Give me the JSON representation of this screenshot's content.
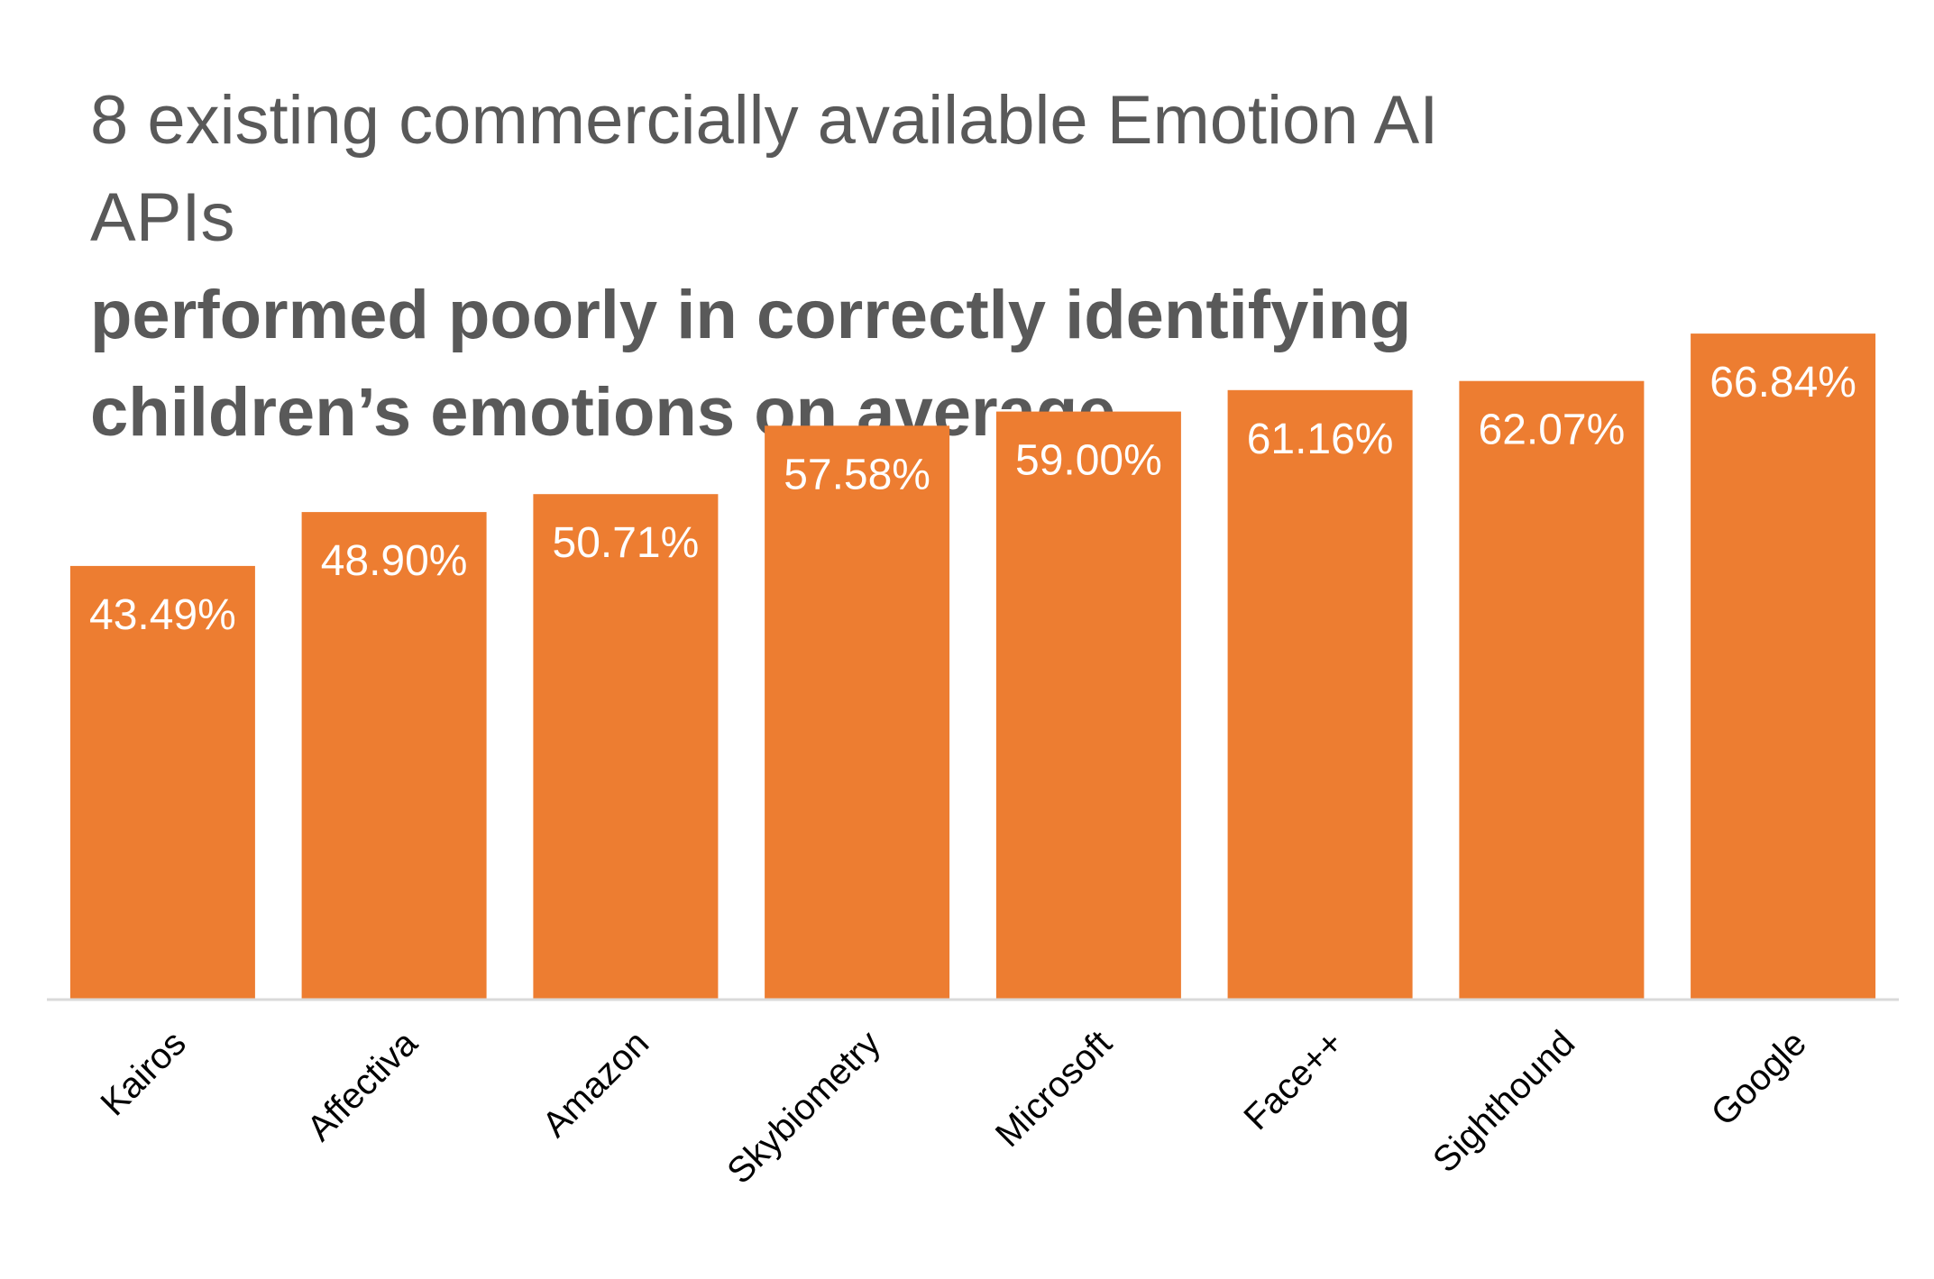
{
  "chart_data": {
    "type": "bar",
    "title": "8 existing commercially available Emotion AI APIs",
    "subtitle": "performed poorly in correctly identifying children’s emotions on average",
    "title_lines": [
      "8 existing commercially available Emotion AI",
      "APIs"
    ],
    "subtitle_lines": [
      "performed poorly in correctly identifying",
      "children’s emotions on average"
    ],
    "categories": [
      "Kairos",
      "Affectiva",
      "Amazon",
      "Skybiometry",
      "Microsoft",
      "Face++",
      "Sighthound",
      "Google"
    ],
    "values": [
      43.49,
      48.9,
      50.71,
      57.58,
      59.0,
      61.16,
      62.07,
      66.84
    ],
    "value_labels": [
      "43.49%",
      "48.90%",
      "50.71%",
      "57.58%",
      "59.00%",
      "61.16%",
      "62.07%",
      "66.84%"
    ],
    "xlabel": "",
    "ylabel": "",
    "ylim": [
      0,
      70
    ],
    "grid": false,
    "legend": "none",
    "bar_color": "#ED7D31",
    "axis_color": "#D9D9D9"
  }
}
